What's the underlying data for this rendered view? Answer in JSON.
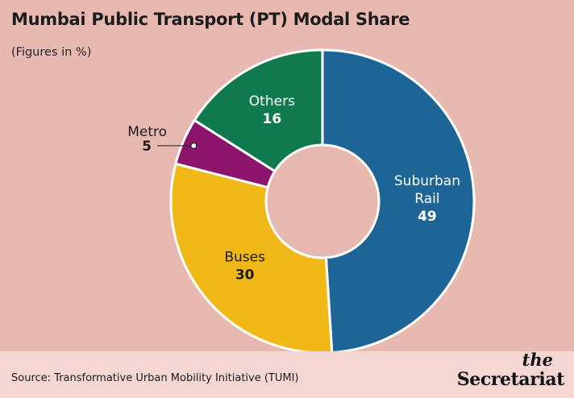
{
  "title": "Mumbai Public Transport (PT) Modal Share",
  "subtitle": "(Figures in %)",
  "source": "Source: Transformative Urban Mobility Initiative (TUMI)",
  "brand": {
    "the": "the",
    "name": "Secretariat"
  },
  "chart_data": {
    "type": "pie",
    "donut": true,
    "slices": [
      {
        "label": "Suburban Rail",
        "label_lines": [
          "Suburban",
          "Rail"
        ],
        "value": 49,
        "color": "#1d6497",
        "text_color": "#ffffff"
      },
      {
        "label": "Buses",
        "label_lines": [
          "Buses"
        ],
        "value": 30,
        "color": "#f0b917",
        "text_color": "#1c1c1c"
      },
      {
        "label": "Metro",
        "label_lines": [
          "Metro"
        ],
        "value": 5,
        "color": "#8c146b",
        "text_color": "#1c1c1c"
      },
      {
        "label": "Others",
        "label_lines": [
          "Others"
        ],
        "value": 16,
        "color": "#0f7a4e",
        "text_color": "#ffffff"
      }
    ]
  }
}
